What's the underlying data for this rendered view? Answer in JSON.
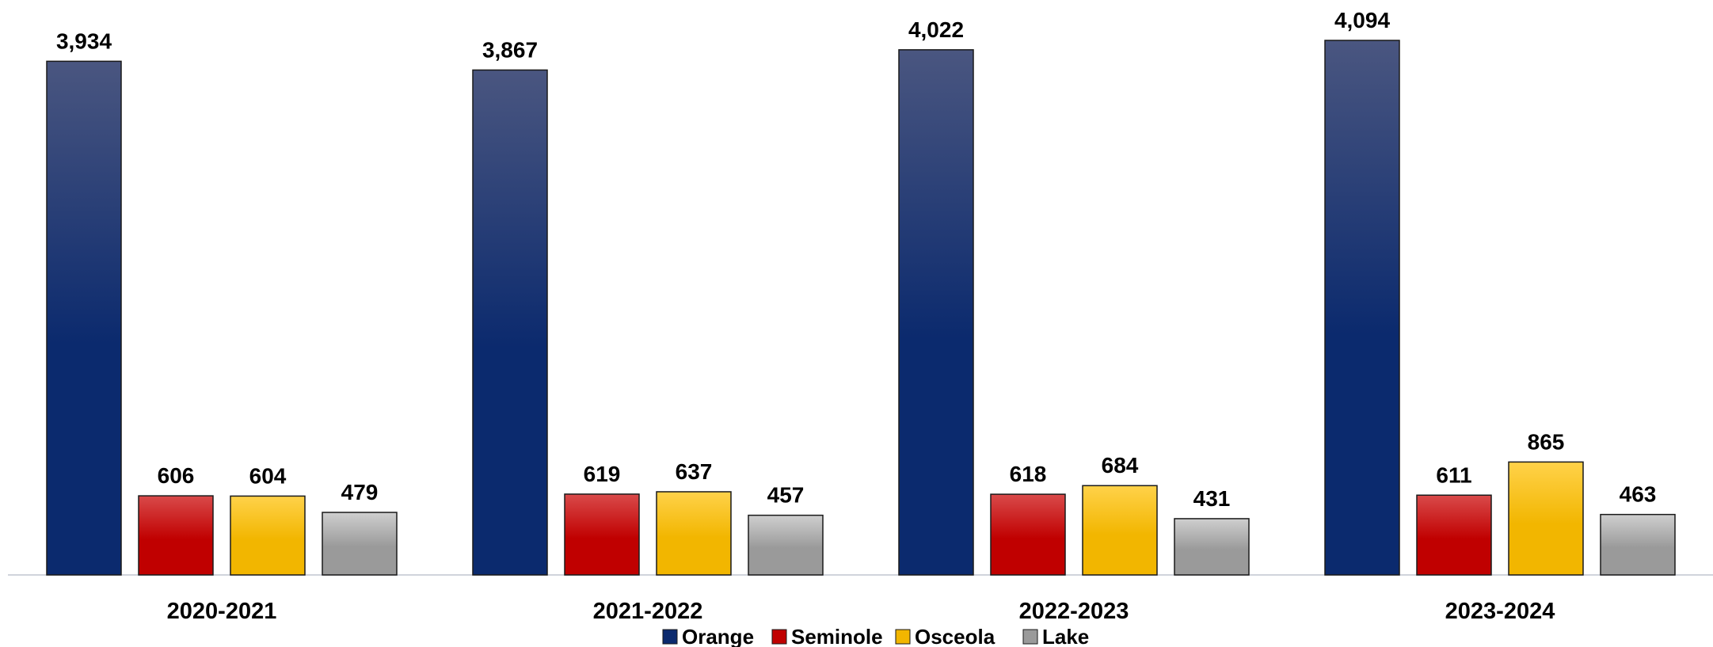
{
  "chart_data": {
    "type": "bar",
    "categories": [
      "2020-2021",
      "2021-2022",
      "2022-2023",
      "2023-2024"
    ],
    "series": [
      {
        "name": "Orange",
        "values": [
          3934,
          3867,
          4022,
          4094
        ],
        "color": "#0b2a6e",
        "color_top": "#4a5680"
      },
      {
        "name": "Seminole",
        "values": [
          606,
          619,
          618,
          611
        ],
        "color": "#c00000",
        "color_top": "#d94a4a"
      },
      {
        "name": "Osceola",
        "values": [
          604,
          637,
          684,
          865
        ],
        "color": "#f2b600",
        "color_top": "#ffd24a"
      },
      {
        "name": "Lake",
        "values": [
          479,
          457,
          431,
          463
        ],
        "color": "#9a9a9a",
        "color_top": "#cfcfcf"
      }
    ],
    "value_labels": [
      [
        "3,934",
        "3,867",
        "4,022",
        "4,094"
      ],
      [
        "606",
        "619",
        "618",
        "611"
      ],
      [
        "604",
        "637",
        "684",
        "865"
      ],
      [
        "479",
        "457",
        "431",
        "463"
      ]
    ],
    "ylim": [
      0,
      4100
    ],
    "grid": false,
    "legend": "bottom-center",
    "title": "",
    "xlabel": "",
    "ylabel": ""
  }
}
